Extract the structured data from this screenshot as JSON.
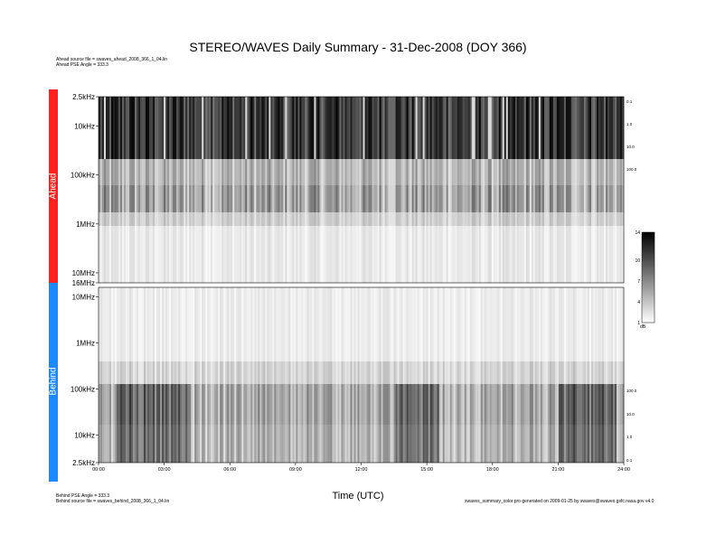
{
  "title": "STEREO/WAVES Daily Summary - 31-Dec-2008 (DOY 366)",
  "ahead_meta": {
    "source_file": "Ahead source file = swaves_ahead_2008_366_1_04.lin",
    "pse_angle": "Ahead PSE Angle = 333.3"
  },
  "behind_meta": {
    "pse_angle": "Behind PSE Angle = 333.3",
    "source_file": "Behind source file = swaves_behind_2008_366_1_04.lin"
  },
  "footer_note": "swaves_summary_color.pro generated on 2009-01-25 by swaves@swaves.gsfc.nasa.gov v4.0",
  "colors": {
    "ahead": "#ff2020",
    "behind": "#1e88ff"
  },
  "chart_data": {
    "type": "heatmap",
    "title": "STEREO/WAVES Daily Summary - 31-Dec-2008 (DOY 366)",
    "xlabel": "Time (UTC)",
    "x_ticks": [
      "00:00",
      "03:00",
      "06:00",
      "09:00",
      "12:00",
      "15:00",
      "18:00",
      "21:00",
      "24:00"
    ],
    "x_range_hours": [
      0,
      24
    ],
    "panels": [
      {
        "name": "Ahead",
        "frequency_scale": "log",
        "frequency_range": [
          "2.5kHz",
          "16MHz"
        ],
        "y_ticks": [
          "2.5kHz",
          "10kHz",
          "100kHz",
          "1MHz",
          "10MHz",
          "16MHz"
        ],
        "right_ticks": [
          "0.1",
          "1.0",
          "10.0",
          "100.0"
        ]
      },
      {
        "name": "Behind",
        "frequency_scale": "log",
        "frequency_range": [
          "2.5kHz",
          "16MHz"
        ],
        "y_ticks": [
          "10MHz",
          "1MHz",
          "100kHz",
          "10kHz",
          "2.5kHz"
        ],
        "right_ticks": [
          "100.0",
          "10.0",
          "1.0",
          "0.1"
        ]
      }
    ],
    "colorbar": {
      "ticks": [
        "1",
        "4",
        "7",
        "10",
        "14"
      ],
      "range": [
        1,
        14
      ],
      "unit": "dB",
      "colormap": "grayscale"
    }
  }
}
